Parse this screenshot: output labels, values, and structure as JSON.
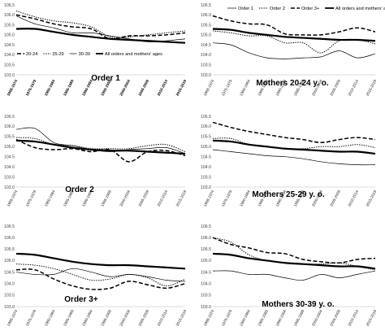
{
  "series_styles": {
    "s1": {
      "stroke": "#000000",
      "width": 1.5,
      "dash": "5,2.5"
    },
    "s2": {
      "stroke": "#000000",
      "width": 1.0,
      "dash": "1.4,1.4"
    },
    "s3": {
      "stroke": "#000000",
      "width": 0.7,
      "dash": ""
    },
    "all": {
      "stroke": "#000000",
      "width": 2.2,
      "dash": ""
    }
  },
  "chart_data": [
    {
      "type": "line",
      "title": "Order 1",
      "categories": [
        "1968-1974",
        "1975-1979",
        "1980-1984",
        "1985-1989",
        "1990-1994",
        "1995-1999",
        "2000-2004",
        "2005-2009",
        "2010-2014",
        "2015-2019"
      ],
      "y_ticks": [
        "103.0",
        "103.5",
        "104.0",
        "104.5",
        "105.0",
        "105.5",
        "106.0",
        "106.5"
      ],
      "ylim": [
        103.0,
        106.5
      ],
      "bold_ticks": true,
      "legend": {
        "position": "inside-bottom",
        "entries": [
          {
            "key": "s1",
            "label": "20-24"
          },
          {
            "key": "s2",
            "label": "25-29"
          },
          {
            "key": "s3",
            "label": "30-39"
          },
          {
            "key": "all",
            "label": "All orders and mothers' ages"
          }
        ]
      },
      "series": [
        {
          "key": "s1",
          "name": "20-24",
          "values": [
            106.0,
            105.8,
            105.55,
            105.4,
            105.3,
            104.8,
            104.95,
            104.95,
            105.0,
            105.1
          ]
        },
        {
          "key": "s2",
          "name": "25-29",
          "values": [
            106.2,
            105.9,
            105.7,
            105.6,
            105.4,
            104.9,
            104.9,
            105.0,
            105.1,
            105.2
          ]
        },
        {
          "key": "s3",
          "name": "30-39",
          "values": [
            105.95,
            105.55,
            105.35,
            105.1,
            105.1,
            104.95,
            104.8,
            104.65,
            104.7,
            104.8
          ]
        },
        {
          "key": "all",
          "name": "All orders and mothers' ages",
          "values": [
            105.3,
            105.3,
            105.15,
            105.0,
            104.9,
            104.8,
            104.75,
            104.7,
            104.65,
            104.6
          ]
        }
      ]
    },
    {
      "type": "line",
      "title": "Mothers 20-24 y. o.",
      "categories": [
        "1968-1974",
        "1975-1979",
        "1980-1984",
        "1985-1989",
        "1990-1994",
        "1995-1999",
        "2000-2004",
        "2005-2009",
        "2010-2014",
        "2015-2019"
      ],
      "y_ticks": [
        "103.0",
        "103.5",
        "104.0",
        "104.5",
        "105.0",
        "105.5",
        "106.0",
        "106.5"
      ],
      "ylim": [
        103.0,
        106.5
      ],
      "bold_ticks": false,
      "legend": {
        "position": "top",
        "entries": [
          {
            "key": "s3",
            "label": "Order 1"
          },
          {
            "key": "s2",
            "label": "Order 2"
          },
          {
            "key": "s1",
            "label": "Order 3+"
          },
          {
            "key": "all",
            "label": "All orders and mothers' ages"
          }
        ]
      },
      "series": [
        {
          "key": "s3",
          "name": "Order 1",
          "values": [
            104.6,
            104.5,
            104.1,
            103.85,
            103.8,
            103.85,
            103.9,
            104.2,
            103.85,
            104.05
          ]
        },
        {
          "key": "s2",
          "name": "Order 2",
          "values": [
            105.2,
            105.1,
            104.95,
            104.95,
            104.6,
            104.6,
            104.1,
            104.7,
            104.75,
            104.55
          ]
        },
        {
          "key": "s1",
          "name": "Order 3+",
          "values": [
            105.95,
            105.7,
            105.55,
            105.5,
            105.05,
            105.0,
            105.0,
            105.15,
            105.35,
            105.15
          ]
        },
        {
          "key": "all",
          "name": "All orders and mothers' ages",
          "values": [
            105.3,
            105.25,
            105.1,
            105.0,
            104.9,
            104.85,
            104.8,
            104.75,
            104.75,
            104.7
          ]
        }
      ]
    },
    {
      "type": "line",
      "title": "Order 2",
      "categories": [
        "1968-1974",
        "1975-1979",
        "1980-1984",
        "1985-1989",
        "1990-1994",
        "1995-1999",
        "2000-2004",
        "2005-2009",
        "2010-2014",
        "2015-2019"
      ],
      "y_ticks": [
        "103.0",
        "103.5",
        "104.0",
        "104.5",
        "105.0",
        "105.5",
        "106.0",
        "106.5"
      ],
      "ylim": [
        103.0,
        106.5
      ],
      "bold_ticks": false,
      "legend": null,
      "series": [
        {
          "key": "s1",
          "name": "20-24",
          "values": [
            105.35,
            104.95,
            104.85,
            104.9,
            104.75,
            104.85,
            104.25,
            104.75,
            104.8,
            104.55
          ]
        },
        {
          "key": "s2",
          "name": "25-29",
          "values": [
            105.45,
            105.4,
            105.1,
            105.05,
            104.9,
            104.9,
            104.9,
            105.05,
            105.1,
            104.75
          ]
        },
        {
          "key": "s3",
          "name": "30-39",
          "values": [
            105.85,
            105.9,
            105.2,
            105.05,
            104.85,
            104.75,
            104.85,
            104.9,
            104.95,
            104.65
          ]
        },
        {
          "key": "all",
          "name": "All orders and mothers' ages",
          "values": [
            105.3,
            105.25,
            105.1,
            104.95,
            104.85,
            104.8,
            104.8,
            104.75,
            104.7,
            104.65
          ]
        }
      ]
    },
    {
      "type": "line",
      "title": "Mothers 25-29 y. o.",
      "categories": [
        "1968-1974",
        "1975-1979",
        "1980-1984",
        "1985-1989",
        "1990-1994",
        "1995-1999",
        "2000-2004",
        "2005-2009",
        "2010-2014",
        "2015-2019"
      ],
      "y_ticks": [
        "103.0",
        "103.5",
        "104.0",
        "104.5",
        "105.0",
        "105.5",
        "106.0",
        "106.5"
      ],
      "ylim": [
        103.0,
        106.5
      ],
      "bold_ticks": false,
      "legend": null,
      "series": [
        {
          "key": "s3",
          "name": "Order 1",
          "values": [
            104.85,
            104.75,
            104.65,
            104.55,
            104.5,
            104.4,
            104.25,
            104.15,
            104.1,
            104.1
          ]
        },
        {
          "key": "s2",
          "name": "Order 2",
          "values": [
            105.4,
            105.4,
            105.1,
            105.0,
            104.9,
            104.9,
            105.0,
            105.0,
            105.1,
            104.95
          ]
        },
        {
          "key": "s1",
          "name": "Order 3+",
          "values": [
            106.2,
            105.95,
            105.75,
            105.6,
            105.45,
            105.35,
            105.2,
            105.35,
            105.45,
            105.35
          ]
        },
        {
          "key": "all",
          "name": "All orders and mothers' ages",
          "values": [
            105.3,
            105.25,
            105.1,
            105.0,
            104.9,
            104.85,
            104.8,
            104.75,
            104.75,
            104.65
          ]
        }
      ]
    },
    {
      "type": "line",
      "title": "Order 3+",
      "categories": [
        "1968-1974",
        "1975-1979",
        "1980-1984",
        "1985-1989",
        "1990-1994",
        "1995-1999",
        "2000-2004",
        "2005-2009",
        "2010-2014",
        "2015-2019"
      ],
      "y_ticks": [
        "103.0",
        "103.5",
        "104.0",
        "104.5",
        "105.0",
        "105.5",
        "106.0",
        "106.5"
      ],
      "ylim": [
        103.0,
        106.5
      ],
      "bold_ticks": false,
      "legend": null,
      "series": [
        {
          "key": "s1",
          "name": "20-24",
          "values": [
            104.6,
            104.6,
            104.2,
            103.9,
            103.75,
            103.8,
            104.1,
            103.95,
            103.8,
            104.0
          ]
        },
        {
          "key": "s2",
          "name": "25-29",
          "values": [
            104.85,
            104.8,
            104.65,
            104.4,
            104.15,
            104.2,
            104.4,
            104.25,
            103.9,
            104.2
          ]
        },
        {
          "key": "s3",
          "name": "30-39",
          "values": [
            104.5,
            104.4,
            104.4,
            104.65,
            104.5,
            104.3,
            104.4,
            104.3,
            104.15,
            104.1
          ]
        },
        {
          "key": "all",
          "name": "All orders and mothers' ages",
          "values": [
            105.3,
            105.25,
            105.1,
            104.95,
            104.85,
            104.8,
            104.8,
            104.75,
            104.7,
            104.65
          ]
        }
      ]
    },
    {
      "type": "line",
      "title": "Mothers 30-39 y. o.",
      "categories": [
        "1968-1974",
        "1975-1979",
        "1980-1984",
        "1985-1989",
        "1990-1994",
        "1995-1999",
        "2000-2004",
        "2005-2009",
        "2010-2014",
        "2015-2019"
      ],
      "y_ticks": [
        "103.0",
        "103.5",
        "104.0",
        "104.5",
        "105.0",
        "105.5",
        "106.0",
        "106.5"
      ],
      "ylim": [
        103.0,
        106.5
      ],
      "bold_ticks": false,
      "legend": null,
      "series": [
        {
          "key": "s3",
          "name": "Order 1",
          "values": [
            104.55,
            104.55,
            104.4,
            104.4,
            104.25,
            104.15,
            104.4,
            104.25,
            104.4,
            104.55
          ]
        },
        {
          "key": "s2",
          "name": "Order 2",
          "values": [
            106.0,
            105.8,
            105.25,
            105.0,
            104.9,
            104.85,
            104.85,
            104.9,
            104.75,
            104.6
          ]
        },
        {
          "key": "s1",
          "name": "Order 3+",
          "values": [
            106.0,
            105.7,
            105.55,
            105.35,
            105.3,
            105.05,
            104.95,
            104.9,
            105.05,
            105.1
          ]
        },
        {
          "key": "all",
          "name": "All orders and mothers' ages",
          "values": [
            105.3,
            105.25,
            105.1,
            105.0,
            104.9,
            104.85,
            104.8,
            104.75,
            104.75,
            104.65
          ]
        }
      ]
    }
  ]
}
